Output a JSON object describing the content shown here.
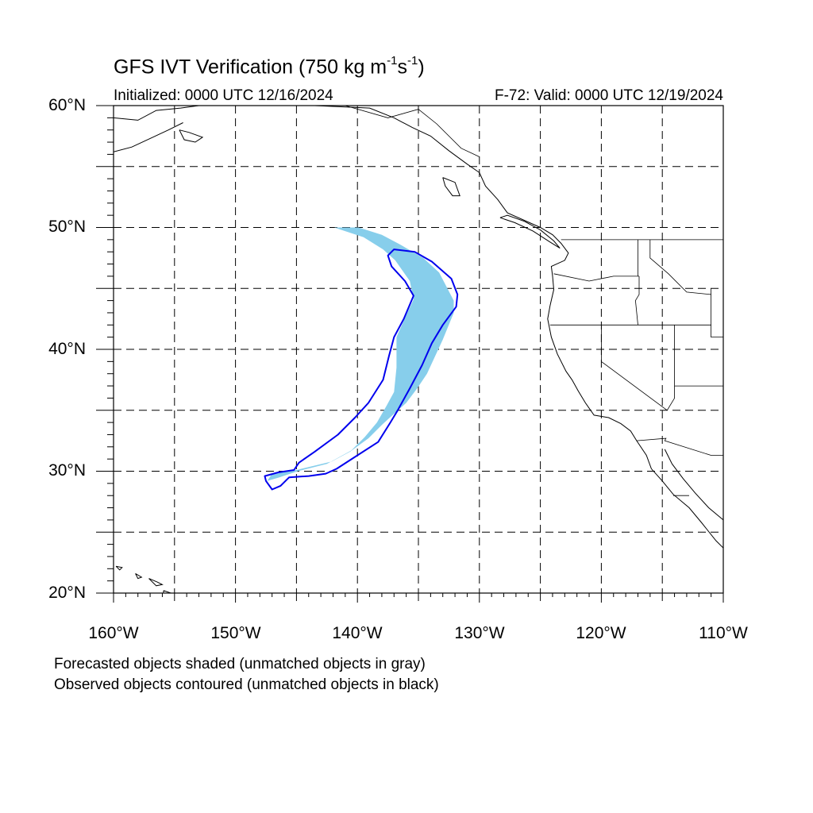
{
  "title": {
    "main": "GFS IVT Verification (750 kg m",
    "sup1": "-1",
    "mid": "s",
    "sup2": "-1",
    "end": ")"
  },
  "subtitle_left": "Initialized: 0000 UTC 12/16/2024",
  "subtitle_right": "F-72: Valid: 0000 UTC 12/19/2024",
  "lat_labels": [
    "60°N",
    "50°N",
    "40°N",
    "30°N",
    "20°N"
  ],
  "lon_labels": [
    "160°W",
    "150°W",
    "140°W",
    "130°W",
    "120°W",
    "110°W"
  ],
  "footnotes": [
    "Forecasted objects shaded (unmatched objects in gray)",
    "Observed objects contoured (unmatched objects in black)"
  ],
  "colors": {
    "forecast_fill": "#87ceeb",
    "observed_contour": "#0000ee",
    "coast": "#000000",
    "grid": "#000000"
  },
  "map_extent": {
    "lon": [
      -160,
      -110
    ],
    "lat": [
      20,
      60
    ]
  },
  "grid_lines": {
    "lon": [
      -155,
      -150,
      -145,
      -140,
      -135,
      -130,
      -125,
      -120,
      -115
    ],
    "lat": [
      25,
      30,
      35,
      40,
      45,
      50,
      55
    ]
  },
  "forecast_object": {
    "lonlat": [
      [
        -141.9,
        50.0
      ],
      [
        -139.9,
        50.0
      ],
      [
        -138.0,
        49.4
      ],
      [
        -136.5,
        48.6
      ],
      [
        -134.6,
        47.5
      ],
      [
        -133.3,
        46.3
      ],
      [
        -132.1,
        44.0
      ],
      [
        -132.1,
        43.0
      ],
      [
        -133.0,
        40.8
      ],
      [
        -134.3,
        38.0
      ],
      [
        -135.1,
        36.8
      ],
      [
        -136.0,
        35.6
      ],
      [
        -136.9,
        34.8
      ],
      [
        -138.0,
        33.8
      ],
      [
        -139.1,
        32.7
      ],
      [
        -140.6,
        31.6
      ],
      [
        -142.1,
        30.8
      ],
      [
        -145.0,
        30.1
      ],
      [
        -147.0,
        29.8
      ],
      [
        -147.4,
        29.2
      ],
      [
        -146.4,
        29.5
      ],
      [
        -144.9,
        30.0
      ],
      [
        -142.5,
        30.6
      ],
      [
        -140.5,
        31.7
      ],
      [
        -139.4,
        32.8
      ],
      [
        -138.4,
        34.0
      ],
      [
        -137.6,
        35.4
      ],
      [
        -137.0,
        36.5
      ],
      [
        -136.8,
        38.5
      ],
      [
        -136.8,
        41.0
      ],
      [
        -136.0,
        42.8
      ],
      [
        -135.4,
        44.1
      ],
      [
        -135.7,
        45.6
      ],
      [
        -136.9,
        47.3
      ],
      [
        -137.9,
        48.2
      ],
      [
        -139.5,
        49.2
      ],
      [
        -141.3,
        49.8
      ]
    ]
  },
  "observed_object": {
    "lonlat": [
      [
        -137.0,
        48.2
      ],
      [
        -135.3,
        48.0
      ],
      [
        -133.9,
        47.2
      ],
      [
        -132.3,
        45.8
      ],
      [
        -131.8,
        44.5
      ],
      [
        -131.9,
        43.5
      ],
      [
        -133.0,
        42.0
      ],
      [
        -133.9,
        40.5
      ],
      [
        -134.7,
        38.7
      ],
      [
        -135.7,
        36.8
      ],
      [
        -136.7,
        35.0
      ],
      [
        -137.3,
        34.0
      ],
      [
        -138.3,
        32.4
      ],
      [
        -140.0,
        31.3
      ],
      [
        -141.7,
        30.2
      ],
      [
        -142.6,
        29.8
      ],
      [
        -144.0,
        29.6
      ],
      [
        -145.6,
        29.5
      ],
      [
        -146.3,
        28.8
      ],
      [
        -147.0,
        28.5
      ],
      [
        -147.5,
        29.2
      ],
      [
        -147.6,
        29.6
      ],
      [
        -146.5,
        29.9
      ],
      [
        -145.2,
        30.1
      ],
      [
        -144.8,
        30.7
      ],
      [
        -143.5,
        31.6
      ],
      [
        -141.6,
        33.0
      ],
      [
        -140.2,
        34.4
      ],
      [
        -139.1,
        35.6
      ],
      [
        -137.9,
        37.5
      ],
      [
        -137.4,
        39.5
      ],
      [
        -137.0,
        41.0
      ],
      [
        -136.2,
        42.5
      ],
      [
        -135.4,
        44.4
      ],
      [
        -136.1,
        45.6
      ],
      [
        -137.2,
        46.8
      ],
      [
        -137.5,
        47.7
      ]
    ]
  },
  "coastlines": [
    {
      "name": "north-america-west-coast",
      "lonlat": [
        [
          -143.5,
          60.0
        ],
        [
          -139.0,
          59.8
        ],
        [
          -137.0,
          59.0
        ],
        [
          -135.5,
          58.2
        ],
        [
          -134.0,
          57.5
        ],
        [
          -132.5,
          56.3
        ],
        [
          -131.0,
          55.2
        ],
        [
          -130.0,
          54.5
        ],
        [
          -129.5,
          53.4
        ],
        [
          -128.5,
          52.3
        ],
        [
          -127.7,
          51.2
        ],
        [
          -125.0,
          50.0
        ],
        [
          -124.0,
          49.4
        ],
        [
          -123.3,
          48.7
        ],
        [
          -122.7,
          47.9
        ],
        [
          -123.0,
          47.3
        ],
        [
          -124.1,
          46.8
        ],
        [
          -124.0,
          46.0
        ],
        [
          -123.9,
          44.9
        ],
        [
          -124.2,
          43.6
        ],
        [
          -124.4,
          42.5
        ],
        [
          -124.1,
          41.0
        ],
        [
          -123.6,
          39.6
        ],
        [
          -122.9,
          38.2
        ],
        [
          -122.4,
          37.5
        ],
        [
          -121.9,
          36.6
        ],
        [
          -121.3,
          35.6
        ],
        [
          -120.6,
          34.6
        ],
        [
          -119.4,
          34.4
        ],
        [
          -118.4,
          33.9
        ],
        [
          -117.6,
          33.3
        ],
        [
          -117.1,
          32.5
        ],
        [
          -116.3,
          31.3
        ],
        [
          -115.9,
          30.2
        ],
        [
          -115.0,
          29.2
        ],
        [
          -114.1,
          28.1
        ],
        [
          -112.8,
          27.0
        ],
        [
          -111.8,
          25.8
        ],
        [
          -110.6,
          24.3
        ],
        [
          -110.0,
          23.7
        ]
      ]
    },
    {
      "name": "vancouver-island",
      "lonlat": [
        [
          -128.3,
          50.8
        ],
        [
          -127.1,
          50.4
        ],
        [
          -125.6,
          49.7
        ],
        [
          -124.2,
          48.8
        ],
        [
          -123.4,
          48.3
        ],
        [
          -123.9,
          48.9
        ],
        [
          -125.0,
          49.8
        ],
        [
          -126.3,
          50.5
        ],
        [
          -127.7,
          51.0
        ],
        [
          -128.3,
          50.8
        ]
      ]
    },
    {
      "name": "alaska-coast-north",
      "lonlat": [
        [
          -160.0,
          59.0
        ],
        [
          -158.0,
          58.8
        ],
        [
          -156.5,
          59.6
        ],
        [
          -154.5,
          59.8
        ],
        [
          -153.0,
          60.0
        ]
      ]
    },
    {
      "name": "alaska-peninsula",
      "lonlat": [
        [
          -160.0,
          56.2
        ],
        [
          -158.5,
          56.6
        ],
        [
          -157.0,
          57.3
        ],
        [
          -155.5,
          58.0
        ],
        [
          -154.3,
          58.6
        ]
      ]
    },
    {
      "name": "kodiak-island",
      "lonlat": [
        [
          -154.6,
          58.0
        ],
        [
          -153.8,
          57.8
        ],
        [
          -152.7,
          57.4
        ],
        [
          -153.3,
          57.0
        ],
        [
          -154.2,
          57.2
        ],
        [
          -154.6,
          58.0
        ]
      ]
    },
    {
      "name": "haida-gwaii",
      "lonlat": [
        [
          -133.0,
          54.1
        ],
        [
          -132.0,
          53.7
        ],
        [
          -131.6,
          52.6
        ],
        [
          -132.2,
          52.6
        ],
        [
          -132.8,
          53.4
        ],
        [
          -133.0,
          54.1
        ]
      ]
    },
    {
      "name": "gulf-of-california-east",
      "lonlat": [
        [
          -114.8,
          31.8
        ],
        [
          -114.2,
          30.6
        ],
        [
          -113.3,
          29.4
        ],
        [
          -112.3,
          28.2
        ],
        [
          -111.2,
          27.0
        ],
        [
          -110.0,
          26.0
        ]
      ]
    },
    {
      "name": "hawaii-1",
      "lonlat": [
        [
          -159.8,
          22.2
        ],
        [
          -159.3,
          22.1
        ],
        [
          -159.5,
          21.9
        ],
        [
          -159.8,
          22.2
        ]
      ]
    },
    {
      "name": "hawaii-2",
      "lonlat": [
        [
          -158.2,
          21.6
        ],
        [
          -157.7,
          21.3
        ],
        [
          -158.0,
          21.2
        ],
        [
          -158.2,
          21.6
        ]
      ]
    },
    {
      "name": "hawaii-3",
      "lonlat": [
        [
          -157.1,
          21.2
        ],
        [
          -156.4,
          20.9
        ],
        [
          -156.0,
          20.7
        ],
        [
          -156.5,
          20.6
        ],
        [
          -157.1,
          21.2
        ]
      ]
    },
    {
      "name": "hawaii-big-island",
      "lonlat": [
        [
          -155.9,
          20.2
        ],
        [
          -155.0,
          19.9
        ],
        [
          -155.2,
          19.4
        ],
        [
          -155.9,
          19.6
        ],
        [
          -155.9,
          20.2
        ]
      ]
    }
  ],
  "borders": [
    {
      "name": "us-canada-border",
      "lonlat": [
        [
          -123.3,
          49.0
        ],
        [
          -110.0,
          49.0
        ]
      ]
    },
    {
      "name": "alaska-canada-border",
      "lonlat": [
        [
          -141.0,
          60.0
        ],
        [
          -137.5,
          59.0
        ],
        [
          -135.0,
          59.7
        ],
        [
          -133.5,
          58.5
        ],
        [
          -131.5,
          56.5
        ],
        [
          -130.0,
          55.8
        ]
      ]
    },
    {
      "name": "wa-or-border",
      "lonlat": [
        [
          -123.9,
          46.2
        ],
        [
          -121.0,
          45.6
        ],
        [
          -119.0,
          46.0
        ],
        [
          -116.9,
          46.0
        ]
      ]
    },
    {
      "name": "wa-id-border",
      "lonlat": [
        [
          -117.0,
          49.0
        ],
        [
          -117.0,
          46.0
        ]
      ]
    },
    {
      "name": "or-id-border",
      "lonlat": [
        [
          -116.9,
          46.0
        ],
        [
          -116.9,
          44.5
        ],
        [
          -117.2,
          44.0
        ],
        [
          -117.0,
          42.0
        ]
      ]
    },
    {
      "name": "or-ca-nv-border",
      "lonlat": [
        [
          -124.2,
          42.0
        ],
        [
          -111.0,
          42.0
        ]
      ]
    },
    {
      "name": "ca-nv-border",
      "lonlat": [
        [
          -120.0,
          42.0
        ],
        [
          -120.0,
          39.0
        ],
        [
          -114.6,
          35.0
        ]
      ]
    },
    {
      "name": "nv-az-border",
      "lonlat": [
        [
          -114.6,
          35.0
        ],
        [
          -114.0,
          36.0
        ],
        [
          -114.0,
          37.0
        ]
      ]
    },
    {
      "name": "nv-ut-border",
      "lonlat": [
        [
          -114.0,
          42.0
        ],
        [
          -114.0,
          37.0
        ],
        [
          -110.0,
          37.0
        ]
      ]
    },
    {
      "name": "id-mt-border",
      "lonlat": [
        [
          -116.0,
          49.0
        ],
        [
          -116.0,
          47.5
        ],
        [
          -114.5,
          46.2
        ],
        [
          -113.0,
          44.7
        ],
        [
          -111.0,
          44.5
        ]
      ]
    },
    {
      "name": "id-wy-border",
      "lonlat": [
        [
          -111.0,
          45.0
        ],
        [
          -111.0,
          41.0
        ],
        [
          -110.0,
          41.0
        ]
      ]
    },
    {
      "name": "us-mexico-border",
      "lonlat": [
        [
          -117.1,
          32.5
        ],
        [
          -114.7,
          32.7
        ],
        [
          -114.8,
          32.5
        ],
        [
          -111.0,
          31.3
        ],
        [
          -110.0,
          31.3
        ]
      ]
    },
    {
      "name": "baja-state-line",
      "lonlat": [
        [
          -114.1,
          28.0
        ],
        [
          -112.8,
          28.0
        ]
      ]
    }
  ]
}
